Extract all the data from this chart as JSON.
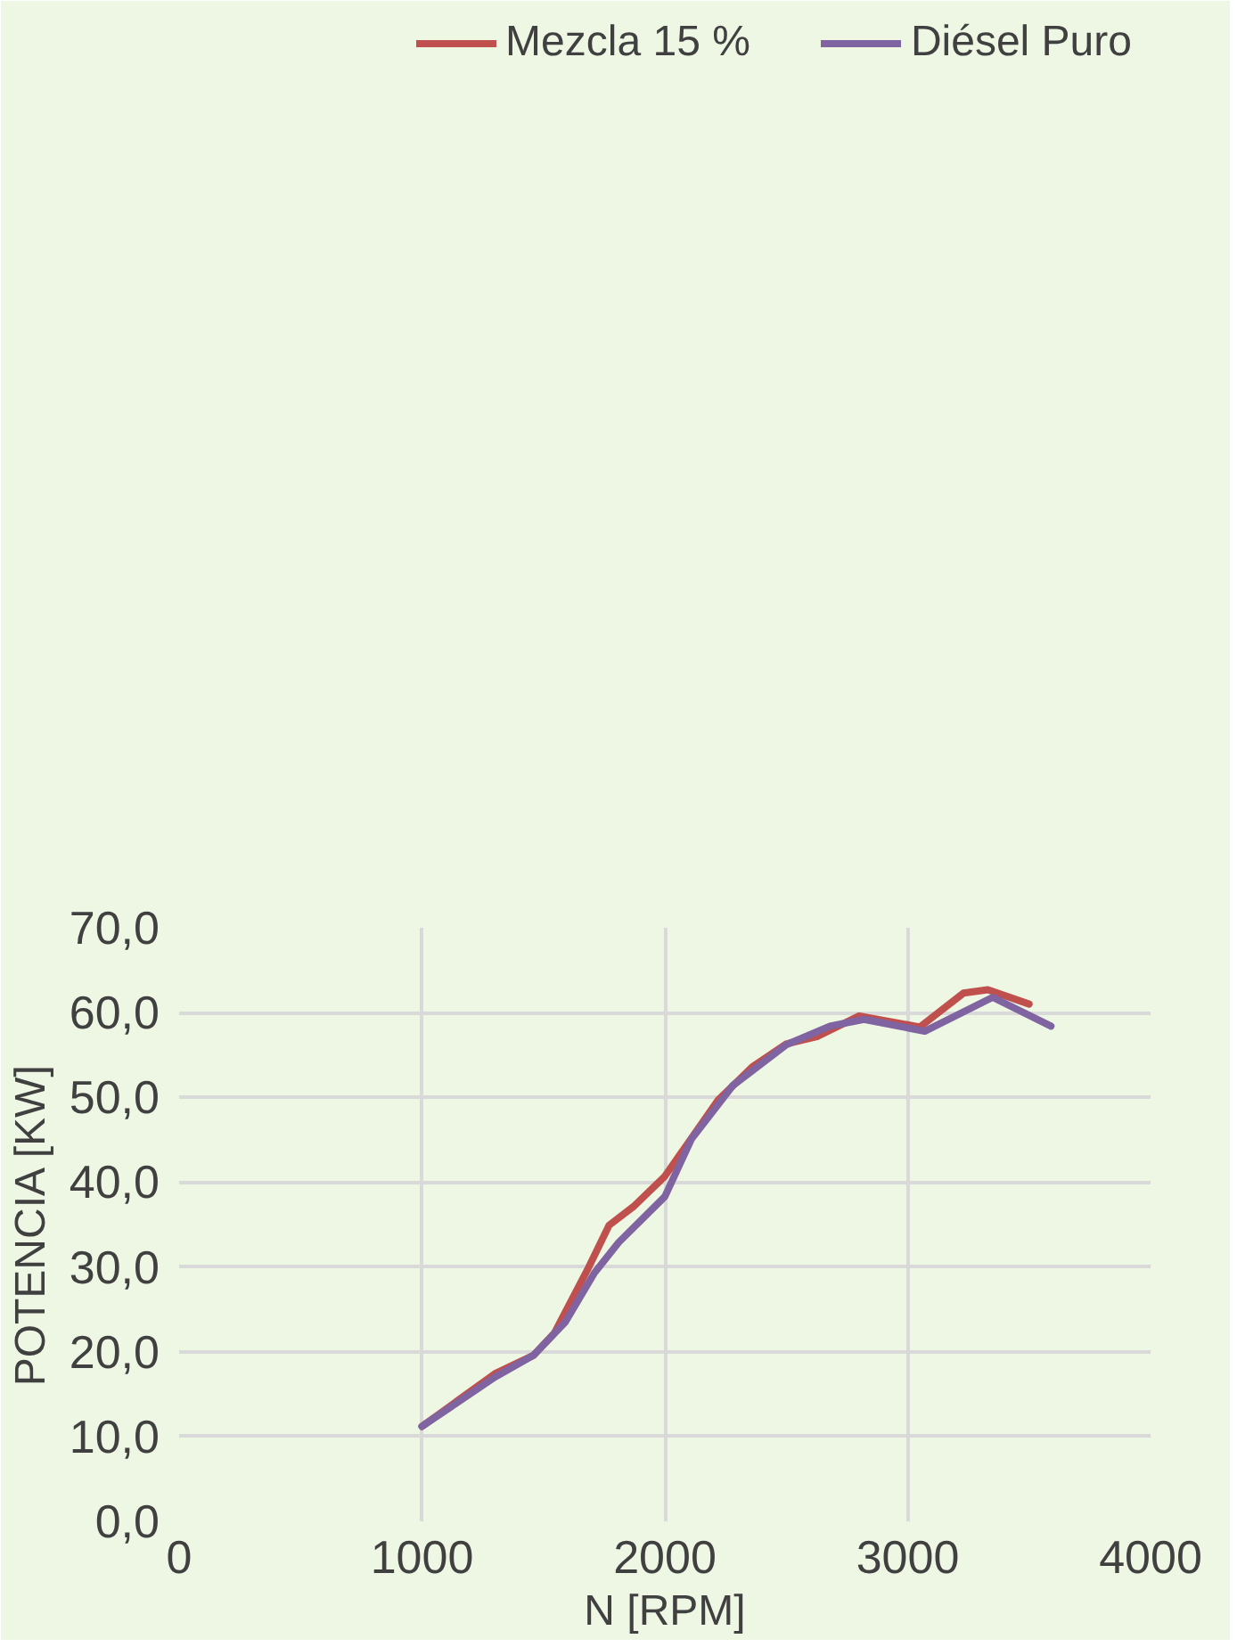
{
  "chart_data": {
    "type": "line",
    "xlabel": "N [RPM]",
    "ylabel": "POTENCIA [KW]",
    "xlim": [
      0,
      4000
    ],
    "xticks": [
      0,
      1000,
      2000,
      3000,
      4000
    ],
    "ylim": [
      0,
      70
    ],
    "yticks": [
      {
        "value": 0,
        "label": "0,0"
      },
      {
        "value": 10,
        "label": "10,0"
      },
      {
        "value": 20,
        "label": "20,0"
      },
      {
        "value": 30,
        "label": "30,0"
      },
      {
        "value": 40,
        "label": "40,0"
      },
      {
        "value": 50,
        "label": "50,0"
      },
      {
        "value": 60,
        "label": "60,0"
      },
      {
        "value": 70,
        "label": "70,0"
      }
    ],
    "grid": true,
    "legend": "top",
    "marker": "none",
    "line_style": "solid",
    "series": [
      {
        "name": "Mezcla 15 %",
        "color": "#c0504d",
        "x": [
          1000,
          1300,
          1460,
          1545,
          1680,
          1770,
          1870,
          2000,
          2220,
          2360,
          2500,
          2630,
          2800,
          3050,
          3230,
          3330,
          3500
        ],
        "values": [
          11.2,
          17.4,
          19.6,
          22.2,
          29.6,
          34.9,
          37.1,
          40.7,
          49.7,
          53.6,
          56.3,
          57.2,
          59.6,
          58.3,
          62.3,
          62.7,
          61.0
        ]
      },
      {
        "name": "Diésel Puro",
        "color": "#8064a2",
        "x": [
          1000,
          1300,
          1460,
          1590,
          1710,
          1810,
          2000,
          2110,
          2280,
          2500,
          2680,
          2820,
          3070,
          3350,
          3590
        ],
        "values": [
          11.2,
          17.0,
          19.6,
          23.5,
          29.3,
          32.9,
          38.3,
          45.1,
          51.4,
          56.2,
          58.4,
          59.2,
          57.8,
          61.8,
          58.4
        ]
      }
    ]
  }
}
